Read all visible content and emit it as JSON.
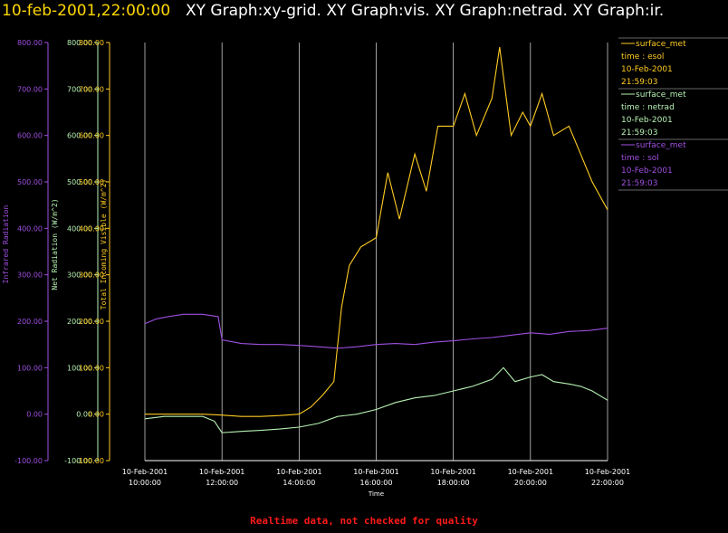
{
  "header": {
    "time_title": "10-feb-2001,22:00:00",
    "graph_titles": "XY Graph:xy-grid.  XY Graph:vis.  XY Graph:netrad.  XY Graph:ir."
  },
  "footer": {
    "note": "Realtime data, not checked for quality"
  },
  "colors": {
    "vis": "#ffcc22",
    "netrad": "#b6f2b2",
    "ir": "#9f4fe0",
    "grid": "#ffffff",
    "footer": "#ff1a1a",
    "background": "#000000"
  },
  "chart_data": {
    "type": "line",
    "grid": true,
    "legend_position": "right",
    "xlabel": "Time",
    "x_ticks": [
      [
        "10-Feb-2001",
        "10:00:00"
      ],
      [
        "10-Feb-2001",
        "12:00:00"
      ],
      [
        "10-Feb-2001",
        "14:00:00"
      ],
      [
        "10-Feb-2001",
        "16:00:00"
      ],
      [
        "10-Feb-2001",
        "18:00:00"
      ],
      [
        "10-Feb-2001",
        "20:00:00"
      ],
      [
        "10-Feb-2001",
        "22:00:00"
      ]
    ],
    "x_range_hours": [
      10,
      22
    ],
    "y_axes": [
      {
        "key": "ir",
        "label": "Infrared Radiation",
        "ylim": [
          -100,
          800
        ],
        "ticks": [
          "-100.00",
          "0.00",
          "100.00",
          "200.00",
          "300.00",
          "400.00",
          "500.00",
          "600.00",
          "700.00",
          "800.00"
        ]
      },
      {
        "key": "netrad",
        "label": "Net Radiation (W/m^2)",
        "ylim": [
          -100,
          800
        ],
        "ticks": [
          "-100.00",
          "0.00",
          "100.00",
          "200.00",
          "300.00",
          "400.00",
          "500.00",
          "600.00",
          "700.00",
          "800.00"
        ]
      },
      {
        "key": "vis",
        "label": "Total Incoming Visible (W/m^2)",
        "ylim": [
          -100,
          800
        ],
        "ticks": [
          "-100.00",
          "0.00",
          "100.00",
          "200.00",
          "300.00",
          "400.00",
          "500.00",
          "600.00",
          "700.00",
          "800.00"
        ]
      }
    ],
    "legend": [
      {
        "key": "vis",
        "line1": "surface_met",
        "line2": "time : esol",
        "line3": "10-Feb-2001",
        "line4": "21:59:03"
      },
      {
        "key": "netrad",
        "line1": "surface_met",
        "line2": "time : netrad",
        "line3": "10-Feb-2001",
        "line4": "21:59:03"
      },
      {
        "key": "ir",
        "line1": "surface_met",
        "line2": "time : sol",
        "line3": "10-Feb-2001",
        "line4": "21:59:03"
      }
    ],
    "series": [
      {
        "key": "vis",
        "x": [
          10,
          10.5,
          11,
          11.5,
          12,
          12.5,
          13,
          13.5,
          14,
          14.3,
          14.6,
          14.9,
          15.1,
          15.3,
          15.6,
          16,
          16.3,
          16.6,
          17,
          17.3,
          17.6,
          18,
          18.3,
          18.6,
          19,
          19.2,
          19.5,
          19.8,
          20,
          20.3,
          20.6,
          21,
          21.3,
          21.6,
          22
        ],
        "y": [
          0,
          0,
          0,
          0,
          -2,
          -5,
          -5,
          -3,
          0,
          15,
          40,
          70,
          230,
          320,
          360,
          380,
          520,
          420,
          560,
          480,
          620,
          620,
          690,
          600,
          680,
          790,
          600,
          650,
          620,
          690,
          600,
          620,
          560,
          500,
          440
        ]
      },
      {
        "key": "netrad",
        "x": [
          10,
          10.5,
          11,
          11.5,
          11.8,
          12,
          12.5,
          13,
          13.5,
          14,
          14.5,
          15,
          15.5,
          16,
          16.5,
          17,
          17.5,
          18,
          18.5,
          19,
          19.3,
          19.6,
          20,
          20.3,
          20.6,
          21,
          21.3,
          21.6,
          22
        ],
        "y": [
          -10,
          -5,
          -5,
          -5,
          -15,
          -40,
          -37,
          -35,
          -32,
          -28,
          -20,
          -5,
          0,
          10,
          25,
          35,
          40,
          50,
          60,
          75,
          100,
          70,
          80,
          85,
          70,
          65,
          60,
          50,
          30
        ]
      },
      {
        "key": "ir",
        "x": [
          10,
          10.3,
          10.6,
          11,
          11.5,
          11.9,
          12,
          12.5,
          13,
          13.5,
          14,
          14.5,
          15,
          15.5,
          16,
          16.5,
          17,
          17.5,
          18,
          18.5,
          19,
          19.5,
          20,
          20.5,
          21,
          21.5,
          22
        ],
        "y": [
          195,
          205,
          210,
          215,
          215,
          210,
          160,
          152,
          150,
          150,
          148,
          145,
          142,
          145,
          150,
          152,
          150,
          155,
          158,
          162,
          165,
          170,
          175,
          172,
          178,
          180,
          185
        ]
      }
    ]
  }
}
